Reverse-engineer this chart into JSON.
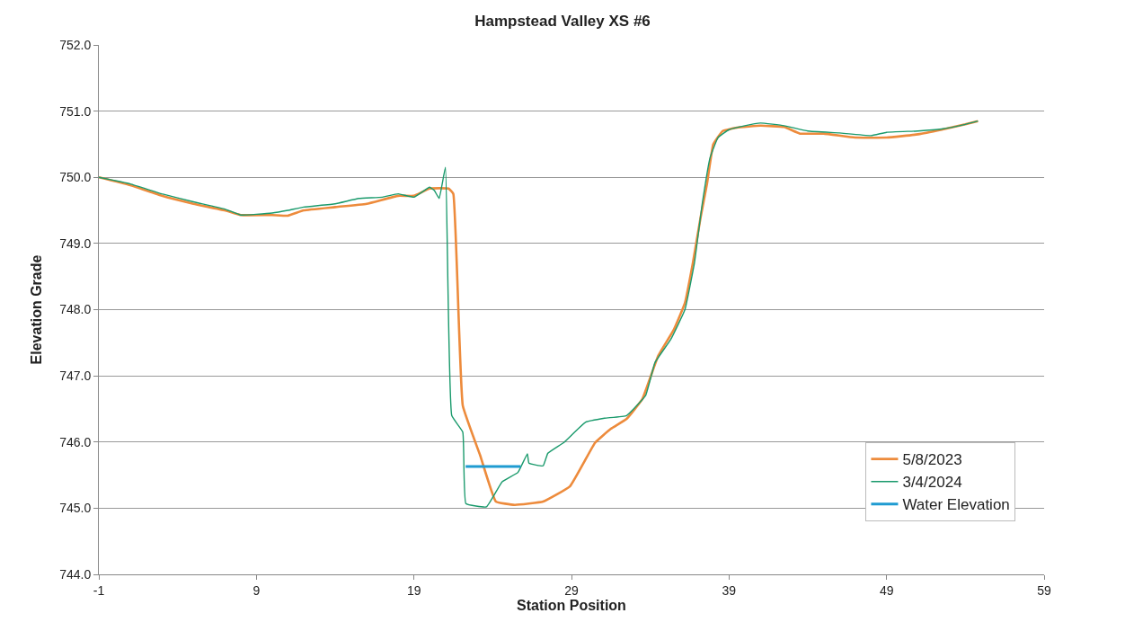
{
  "chart_data": {
    "type": "line",
    "title": "Hampstead Valley XS #6",
    "xlabel": "Station Position",
    "ylabel": "Elevation Grade",
    "xlim": [
      -1,
      59
    ],
    "xticks": [
      -1,
      9,
      19,
      29,
      39,
      49,
      59
    ],
    "ylim": [
      744,
      752
    ],
    "yticks": [
      {
        "value": 744,
        "label": "744.0"
      },
      {
        "value": 745,
        "label": "745.0"
      },
      {
        "value": 746,
        "label": "746.0"
      },
      {
        "value": 747,
        "label": "747.0"
      },
      {
        "value": 748,
        "label": "748.0"
      },
      {
        "value": 749,
        "label": "749.0"
      },
      {
        "value": 750,
        "label": "750.0"
      },
      {
        "value": 751,
        "label": "751.0"
      },
      {
        "value": 752,
        "label": "752.0"
      }
    ],
    "grid": "y",
    "legend": "bottom right",
    "marker": "none",
    "line_style": "solid",
    "series": [
      {
        "name": "5/8/2023",
        "color": "#ed8b3c",
        "x": [
          -1,
          1,
          3,
          5,
          7,
          8,
          10,
          11,
          12,
          14,
          16,
          18,
          19,
          20,
          21.2,
          21.5,
          22.1,
          23.2,
          24.2,
          25.4,
          27.2,
          28.9,
          30.5,
          31.5,
          32.5,
          33.5,
          34.5,
          35.5,
          36.2,
          36.7,
          37.2,
          37.6,
          38,
          38.6,
          39.5,
          41,
          42.5,
          43.5,
          45,
          47,
          49,
          51,
          52.5,
          54,
          54.8
        ],
        "values": [
          750.0,
          749.88,
          749.72,
          749.6,
          749.5,
          749.43,
          749.43,
          749.42,
          749.5,
          749.55,
          749.6,
          749.72,
          749.72,
          749.83,
          749.83,
          749.75,
          746.55,
          745.8,
          745.1,
          745.05,
          745.1,
          745.33,
          745.99,
          746.2,
          746.35,
          746.65,
          747.3,
          747.7,
          748.1,
          748.7,
          749.4,
          749.9,
          750.5,
          750.7,
          750.75,
          750.78,
          750.76,
          750.66,
          750.66,
          750.6,
          750.6,
          750.65,
          750.72,
          750.8,
          750.85
        ]
      },
      {
        "name": "3/4/2024",
        "color": "#1a9a6c",
        "x": [
          -1,
          1,
          3,
          5,
          7,
          8,
          10,
          11,
          12,
          14,
          15.5,
          17,
          18,
          19,
          20,
          20.3,
          20.6,
          21,
          21.4,
          22.1,
          22.3,
          23.6,
          24.6,
          25.6,
          26.2,
          26.3,
          27.2,
          27.5,
          28.5,
          29.9,
          31.1,
          32.5,
          33.7,
          34.3,
          35.3,
          36.2,
          36.8,
          37.3,
          37.8,
          38.3,
          39,
          40,
          41,
          42.5,
          44,
          46,
          48,
          49,
          51,
          52.5,
          54,
          54.8
        ],
        "values": [
          750.0,
          749.9,
          749.75,
          749.63,
          749.52,
          749.43,
          749.46,
          749.5,
          749.55,
          749.6,
          749.68,
          749.7,
          749.75,
          749.7,
          749.85,
          749.8,
          749.68,
          750.15,
          746.4,
          746.15,
          745.07,
          745.02,
          745.4,
          745.54,
          745.82,
          745.68,
          745.64,
          745.83,
          745.99,
          746.3,
          746.36,
          746.4,
          746.7,
          747.2,
          747.55,
          748.0,
          748.7,
          749.6,
          750.3,
          750.6,
          750.72,
          750.78,
          750.82,
          750.78,
          750.7,
          750.67,
          750.63,
          750.68,
          750.7,
          750.73,
          750.8,
          750.85
        ]
      },
      {
        "name": "Water Elevation",
        "color": "#1f9bd1",
        "x": [
          22.28,
          25.77
        ],
        "values": [
          745.63,
          745.63
        ]
      }
    ]
  }
}
